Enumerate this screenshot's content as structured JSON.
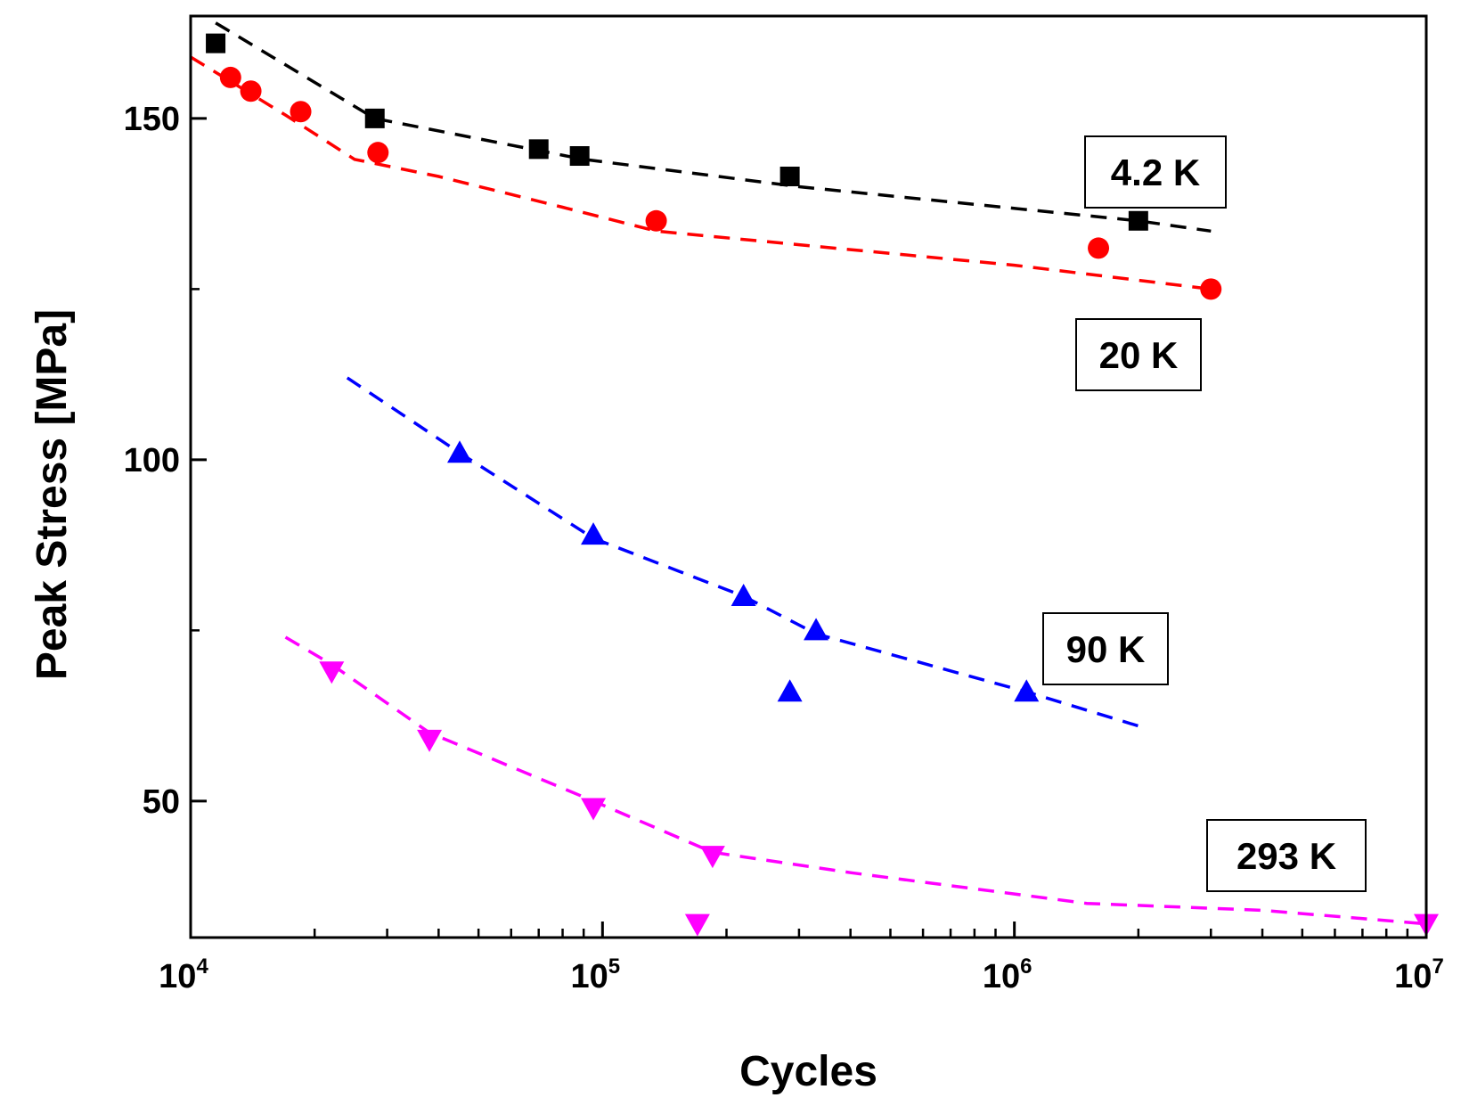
{
  "chart_data": {
    "type": "scatter",
    "xlabel": "Cycles",
    "ylabel": "Peak Stress [MPa]",
    "xscale": "log",
    "xlim": [
      10000,
      10000000
    ],
    "ylim": [
      30,
      165
    ],
    "x_ticks": [
      {
        "value": 10000,
        "base": "10",
        "exp": "4"
      },
      {
        "value": 100000,
        "base": "10",
        "exp": "5"
      },
      {
        "value": 1000000,
        "base": "10",
        "exp": "6"
      },
      {
        "value": 10000000,
        "base": "10",
        "exp": "7"
      }
    ],
    "y_ticks_major": [
      {
        "value": 50,
        "label": "50"
      },
      {
        "value": 100,
        "label": "100"
      },
      {
        "value": 150,
        "label": "150"
      }
    ],
    "y_ticks_minor": [
      75,
      125
    ],
    "series": [
      {
        "name": "4.2 K",
        "color": "#000000",
        "marker": "square",
        "points": [
          [
            11500,
            161
          ],
          [
            28000,
            150
          ],
          [
            70000,
            145.5
          ],
          [
            88000,
            144.5
          ],
          [
            285000,
            141.5
          ],
          [
            2000000,
            135
          ]
        ],
        "fit": [
          [
            11500,
            164
          ],
          [
            28000,
            150
          ],
          [
            90000,
            144
          ],
          [
            300000,
            140
          ],
          [
            2000000,
            135
          ],
          [
            3000000,
            133.5
          ]
        ]
      },
      {
        "name": "20 K",
        "color": "#ff0000",
        "marker": "circle",
        "points": [
          [
            12500,
            156
          ],
          [
            14000,
            154
          ],
          [
            18500,
            151
          ],
          [
            28500,
            145
          ],
          [
            135000,
            135
          ],
          [
            1600000,
            131
          ],
          [
            3000000,
            125
          ]
        ],
        "fit": [
          [
            10000,
            159
          ],
          [
            17000,
            150.5
          ],
          [
            25000,
            144
          ],
          [
            40000,
            141.5
          ],
          [
            80000,
            137
          ],
          [
            135000,
            133.5
          ],
          [
            300000,
            131.5
          ],
          [
            1000000,
            128.5
          ],
          [
            3000000,
            125
          ]
        ]
      },
      {
        "name": "90 K",
        "color": "#0000ff",
        "marker": "triangle-up",
        "points": [
          [
            45000,
            101
          ],
          [
            95000,
            89
          ],
          [
            220000,
            80
          ],
          [
            330000,
            75
          ],
          [
            285000,
            66
          ],
          [
            1070000,
            66
          ]
        ],
        "fit": [
          [
            24000,
            112
          ],
          [
            45000,
            101
          ],
          [
            95000,
            88.5
          ],
          [
            220000,
            80
          ],
          [
            330000,
            74.5
          ],
          [
            1070000,
            66
          ],
          [
            2000000,
            61
          ]
        ]
      },
      {
        "name": "293 K",
        "color": "#ff00ff",
        "marker": "triangle-down",
        "points": [
          [
            22000,
            69
          ],
          [
            38000,
            59
          ],
          [
            95000,
            49
          ],
          [
            170000,
            32
          ],
          [
            185000,
            42
          ],
          [
            10000000,
            32
          ]
        ],
        "fit": [
          [
            17000,
            74
          ],
          [
            22000,
            70
          ],
          [
            38000,
            60
          ],
          [
            95000,
            50
          ],
          [
            185000,
            42.5
          ],
          [
            400000,
            39.5
          ],
          [
            1500000,
            35
          ],
          [
            4000000,
            34
          ],
          [
            10000000,
            32
          ]
        ]
      }
    ],
    "annotations": [
      {
        "text": "4.2 K",
        "series": "4.2 K"
      },
      {
        "text": "20 K",
        "series": "20 K"
      },
      {
        "text": "90 K",
        "series": "90 K"
      },
      {
        "text": "293 K",
        "series": "293 K"
      }
    ]
  }
}
